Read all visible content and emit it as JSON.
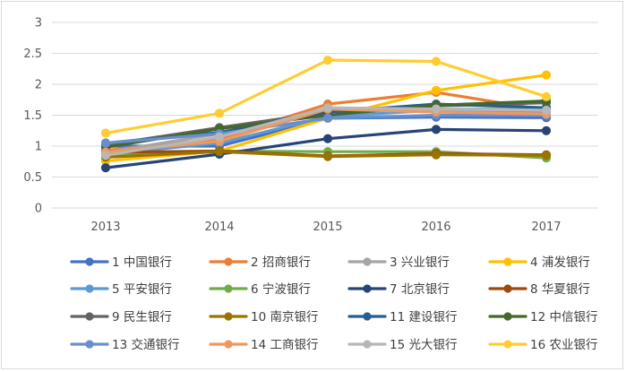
{
  "chart_data": {
    "type": "line",
    "title": "",
    "xlabel": "",
    "ylabel": "",
    "x": [
      "2013",
      "2014",
      "2015",
      "2016",
      "2017"
    ],
    "ylim": [
      0,
      3
    ],
    "yticks": [
      "0",
      "0.5",
      "1",
      "1.5",
      "2",
      "2.5",
      "3"
    ],
    "grid": "horizontal",
    "legend_position": "bottom",
    "series": [
      {
        "name": "1 中国银行",
        "color": "#4472C4",
        "values": [
          1.0,
          1.0,
          1.45,
          1.47,
          1.46
        ]
      },
      {
        "name": "2 招商银行",
        "color": "#ED7D31",
        "values": [
          0.93,
          1.12,
          1.68,
          1.87,
          1.58
        ]
      },
      {
        "name": "3 兴业银行",
        "color": "#A5A5A5",
        "values": [
          0.9,
          1.2,
          1.6,
          1.6,
          1.6
        ]
      },
      {
        "name": "4 浦发银行",
        "color": "#FFC000",
        "values": [
          0.76,
          0.92,
          1.45,
          1.9,
          2.15
        ]
      },
      {
        "name": "5 平安银行",
        "color": "#5B9BD5",
        "values": [
          0.87,
          1.05,
          1.48,
          1.58,
          1.55
        ]
      },
      {
        "name": "6 宁波银行",
        "color": "#70AD47",
        "values": [
          0.86,
          0.92,
          0.91,
          0.91,
          0.81
        ]
      },
      {
        "name": "7 北京银行",
        "color": "#264478",
        "values": [
          0.65,
          0.87,
          1.12,
          1.27,
          1.25
        ]
      },
      {
        "name": "8 华夏银行",
        "color": "#9E480E",
        "values": [
          0.9,
          0.92,
          0.84,
          0.88,
          0.86
        ]
      },
      {
        "name": "9 民生银行",
        "color": "#636363",
        "values": [
          1.02,
          1.3,
          1.55,
          1.65,
          1.7
        ]
      },
      {
        "name": "10 南京银行",
        "color": "#997300",
        "values": [
          0.82,
          0.91,
          0.83,
          0.86,
          0.85
        ]
      },
      {
        "name": "11 建设银行",
        "color": "#255E91",
        "values": [
          1.05,
          1.22,
          1.55,
          1.68,
          1.62
        ]
      },
      {
        "name": "12 中信银行",
        "color": "#43682B",
        "values": [
          0.98,
          1.28,
          1.5,
          1.66,
          1.73
        ]
      },
      {
        "name": "13 交通银行",
        "color": "#698ED0",
        "values": [
          1.05,
          1.2,
          1.45,
          1.5,
          1.5
        ]
      },
      {
        "name": "14 工商银行",
        "color": "#F1975A",
        "values": [
          0.9,
          1.08,
          1.6,
          1.55,
          1.52
        ]
      },
      {
        "name": "15 光大银行",
        "color": "#B7B7B7",
        "values": [
          0.85,
          1.15,
          1.62,
          1.6,
          1.58
        ]
      },
      {
        "name": "16 农业银行",
        "color": "#FFCD33",
        "values": [
          1.21,
          1.53,
          2.39,
          2.37,
          1.8
        ]
      }
    ]
  }
}
